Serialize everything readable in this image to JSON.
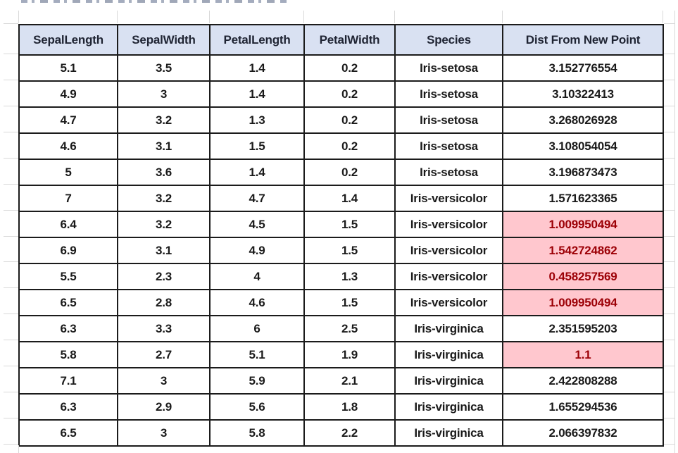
{
  "colors": {
    "header_bg": "#D9E1F2",
    "header_text": "#1F2433",
    "cell_text": "#1A1A1A",
    "highlight_bg": "#FFC7CE",
    "highlight_text": "#9C0006",
    "border": "#1B1B1B",
    "gridline": "#D9D9D9"
  },
  "table": {
    "columns": [
      "SepalLength",
      "SepalWidth",
      "PetalLength",
      "PetalWidth",
      "Species",
      "Dist From New Point"
    ],
    "rows": [
      {
        "cells": [
          "5.1",
          "3.5",
          "1.4",
          "0.2",
          "Iris-setosa",
          "3.152776554"
        ],
        "highlight_dist": false
      },
      {
        "cells": [
          "4.9",
          "3",
          "1.4",
          "0.2",
          "Iris-setosa",
          "3.10322413"
        ],
        "highlight_dist": false
      },
      {
        "cells": [
          "4.7",
          "3.2",
          "1.3",
          "0.2",
          "Iris-setosa",
          "3.268026928"
        ],
        "highlight_dist": false
      },
      {
        "cells": [
          "4.6",
          "3.1",
          "1.5",
          "0.2",
          "Iris-setosa",
          "3.108054054"
        ],
        "highlight_dist": false
      },
      {
        "cells": [
          "5",
          "3.6",
          "1.4",
          "0.2",
          "Iris-setosa",
          "3.196873473"
        ],
        "highlight_dist": false
      },
      {
        "cells": [
          "7",
          "3.2",
          "4.7",
          "1.4",
          "Iris-versicolor",
          "1.571623365"
        ],
        "highlight_dist": false
      },
      {
        "cells": [
          "6.4",
          "3.2",
          "4.5",
          "1.5",
          "Iris-versicolor",
          "1.009950494"
        ],
        "highlight_dist": true
      },
      {
        "cells": [
          "6.9",
          "3.1",
          "4.9",
          "1.5",
          "Iris-versicolor",
          "1.542724862"
        ],
        "highlight_dist": true
      },
      {
        "cells": [
          "5.5",
          "2.3",
          "4",
          "1.3",
          "Iris-versicolor",
          "0.458257569"
        ],
        "highlight_dist": true
      },
      {
        "cells": [
          "6.5",
          "2.8",
          "4.6",
          "1.5",
          "Iris-versicolor",
          "1.009950494"
        ],
        "highlight_dist": true
      },
      {
        "cells": [
          "6.3",
          "3.3",
          "6",
          "2.5",
          "Iris-virginica",
          "2.351595203"
        ],
        "highlight_dist": false
      },
      {
        "cells": [
          "5.8",
          "2.7",
          "5.1",
          "1.9",
          "Iris-virginica",
          "1.1"
        ],
        "highlight_dist": true
      },
      {
        "cells": [
          "7.1",
          "3",
          "5.9",
          "2.1",
          "Iris-virginica",
          "2.422808288"
        ],
        "highlight_dist": false
      },
      {
        "cells": [
          "6.3",
          "2.9",
          "5.6",
          "1.8",
          "Iris-virginica",
          "1.655294536"
        ],
        "highlight_dist": false
      },
      {
        "cells": [
          "6.5",
          "3",
          "5.8",
          "2.2",
          "Iris-virginica",
          "2.066397832"
        ],
        "highlight_dist": false
      }
    ]
  }
}
